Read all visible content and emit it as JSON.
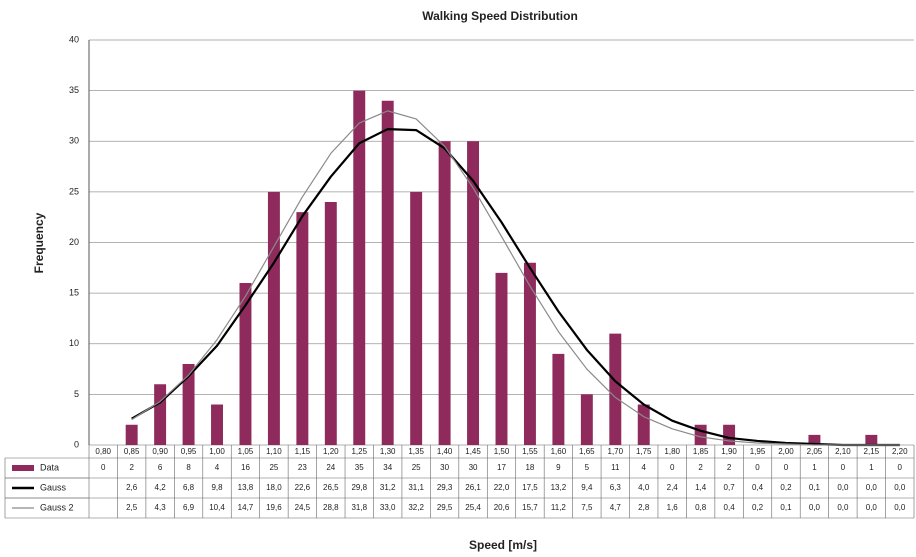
{
  "chart_data": {
    "type": "bar",
    "title": "Walking Speed Distribution",
    "xlabel": "Speed [m/s]",
    "ylabel": "Frequency",
    "categories": [
      "0,80",
      "0,85",
      "0,90",
      "0,95",
      "1,00",
      "1,05",
      "1,10",
      "1,15",
      "1,20",
      "1,25",
      "1,30",
      "1,35",
      "1,40",
      "1,45",
      "1,50",
      "1,55",
      "1,60",
      "1,65",
      "1,70",
      "1,75",
      "1,80",
      "1,85",
      "1,90",
      "1,95",
      "2,00",
      "2,05",
      "2,10",
      "2,15",
      "2,20"
    ],
    "ylim": [
      0,
      40
    ],
    "yticks": [
      0,
      5,
      10,
      15,
      20,
      25,
      30,
      35,
      40
    ],
    "grid": true,
    "series": [
      {
        "name": "Data",
        "type": "bar",
        "color": "#8e2b5c",
        "values": [
          0,
          2,
          6,
          8,
          4,
          16,
          25,
          23,
          24,
          35,
          34,
          25,
          30,
          30,
          17,
          18,
          9,
          5,
          11,
          4,
          0,
          2,
          2,
          0,
          0,
          1,
          0,
          1,
          0
        ]
      },
      {
        "name": "Gauss",
        "type": "line",
        "color": "#000000",
        "values": [
          null,
          2.6,
          4.2,
          6.8,
          9.8,
          13.8,
          18.0,
          22.6,
          26.5,
          29.8,
          31.2,
          31.1,
          29.3,
          26.1,
          22.0,
          17.5,
          13.2,
          9.4,
          6.3,
          4.0,
          2.4,
          1.4,
          0.7,
          0.4,
          0.2,
          0.1,
          0.0,
          0.0,
          0.0
        ],
        "value_labels": [
          null,
          "2,6",
          "4,2",
          "6,8",
          "9,8",
          "13,8",
          "18,0",
          "22,6",
          "26,5",
          "29,8",
          "31,2",
          "31,1",
          "29,3",
          "26,1",
          "22,0",
          "17,5",
          "13,2",
          "9,4",
          "6,3",
          "4,0",
          "2,4",
          "1,4",
          "0,7",
          "0,4",
          "0,2",
          "0,1",
          "0,0",
          "0,0",
          "0,0"
        ]
      },
      {
        "name": "Gauss 2",
        "type": "line",
        "color": "#8a8a8a",
        "values": [
          null,
          2.5,
          4.3,
          6.9,
          10.4,
          14.7,
          19.6,
          24.5,
          28.8,
          31.8,
          33.0,
          32.2,
          29.5,
          25.4,
          20.6,
          15.7,
          11.2,
          7.5,
          4.7,
          2.8,
          1.6,
          0.8,
          0.4,
          0.2,
          0.1,
          0.0,
          0.0,
          0.0,
          0.0
        ],
        "value_labels": [
          null,
          "2,5",
          "4,3",
          "6,9",
          "10,4",
          "14,7",
          "19,6",
          "24,5",
          "28,8",
          "31,8",
          "33,0",
          "32,2",
          "29,5",
          "25,4",
          "20,6",
          "15,7",
          "11,2",
          "7,5",
          "4,7",
          "2,8",
          "1,6",
          "0,8",
          "0,4",
          "0,2",
          "0,1",
          "0,0",
          "0,0",
          "0,0",
          "0,0"
        ]
      }
    ]
  }
}
